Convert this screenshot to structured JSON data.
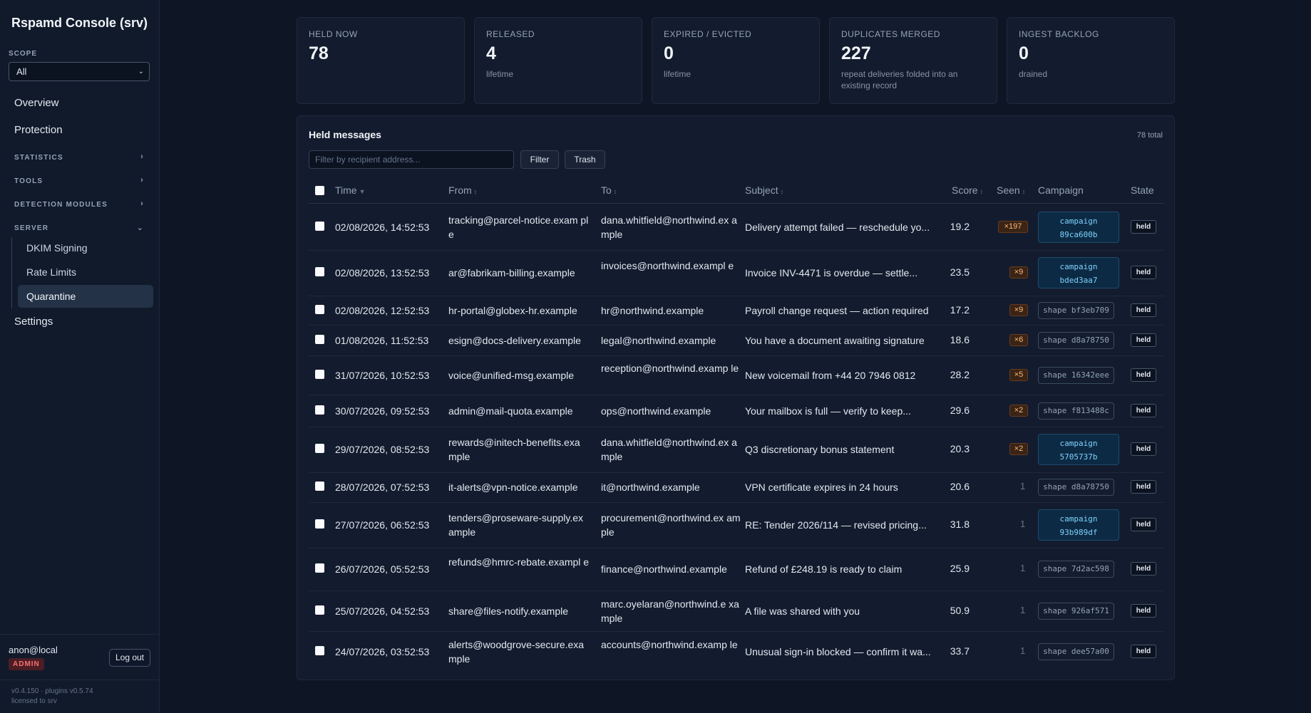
{
  "app": {
    "title": "Rspamd Console (srv)",
    "scope_label": "SCOPE",
    "scope_value": "All"
  },
  "sidebar": {
    "overview": "Overview",
    "protection": "Protection",
    "statistics": "STATISTICS",
    "tools": "TOOLS",
    "detection_modules": "DETECTION MODULES",
    "server": "SERVER",
    "dkim_signing": "DKIM Signing",
    "rate_limits": "Rate Limits",
    "quarantine": "Quarantine",
    "settings": "Settings",
    "user": "anon@local",
    "role": "ADMIN",
    "logout": "Log out",
    "version_line1": "v0.4.150 · plugins v0.5.74",
    "version_line2": "licensed to srv"
  },
  "stats": [
    {
      "label": "HELD NOW",
      "value": "78",
      "sub": ""
    },
    {
      "label": "RELEASED",
      "value": "4",
      "sub": "lifetime"
    },
    {
      "label": "EXPIRED / EVICTED",
      "value": "0",
      "sub": "lifetime"
    },
    {
      "label": "DUPLICATES MERGED",
      "value": "227",
      "sub": "repeat deliveries folded into an existing record"
    },
    {
      "label": "INGEST BACKLOG",
      "value": "0",
      "sub": "drained"
    }
  ],
  "panel": {
    "title": "Held messages",
    "total": "78 total",
    "filter_placeholder": "Filter by recipient address...",
    "filter_button": "Filter",
    "trash_button": "Trash"
  },
  "columns": {
    "time": "Time",
    "from": "From",
    "to": "To",
    "subject": "Subject",
    "score": "Score",
    "seen": "Seen",
    "campaign": "Campaign",
    "state": "State",
    "time_sort": "▼",
    "sort": "↕"
  },
  "rows": [
    {
      "time": "02/08/2026, 14:52:53",
      "from": "tracking@parcel-notice.exam ple",
      "to": "dana.whitfield@northwind.ex ample",
      "subject": "Delivery attempt failed — reschedule yo...",
      "score": "19.2",
      "seen": "×197",
      "campaign_kind": "campaign",
      "campaign_l1": "campaign",
      "campaign_l2": "89ca600b",
      "state": "held"
    },
    {
      "time": "02/08/2026, 13:52:53",
      "from": "ar@fabrikam-billing.example",
      "to": "invoices@northwind.exampl e",
      "subject": "Invoice INV-4471 is overdue — settle...",
      "score": "23.5",
      "seen": "×9",
      "campaign_kind": "campaign",
      "campaign_l1": "campaign",
      "campaign_l2": "bded3aa7",
      "state": "held"
    },
    {
      "time": "02/08/2026, 12:52:53",
      "from": "hr-portal@globex-hr.example",
      "to": "hr@northwind.example",
      "subject": "Payroll change request — action required",
      "score": "17.2",
      "seen": "×9",
      "campaign_kind": "shape",
      "campaign_l1": "shape bf3eb709",
      "campaign_l2": "",
      "state": "held"
    },
    {
      "time": "01/08/2026, 11:52:53",
      "from": "esign@docs-delivery.example",
      "to": "legal@northwind.example",
      "subject": "You have a document awaiting signature",
      "score": "18.6",
      "seen": "×6",
      "campaign_kind": "shape",
      "campaign_l1": "shape d8a78750",
      "campaign_l2": "",
      "state": "held"
    },
    {
      "time": "31/07/2026, 10:52:53",
      "from": "voice@unified-msg.example",
      "to": "reception@northwind.examp le",
      "subject": "New voicemail from +44 20 7946 0812",
      "score": "28.2",
      "seen": "×5",
      "campaign_kind": "shape",
      "campaign_l1": "shape 16342eee",
      "campaign_l2": "",
      "state": "held"
    },
    {
      "time": "30/07/2026, 09:52:53",
      "from": "admin@mail-quota.example",
      "to": "ops@northwind.example",
      "subject": "Your mailbox is full — verify to keep...",
      "score": "29.6",
      "seen": "×2",
      "campaign_kind": "shape",
      "campaign_l1": "shape f813488c",
      "campaign_l2": "",
      "state": "held"
    },
    {
      "time": "29/07/2026, 08:52:53",
      "from": "rewards@initech-benefits.exa mple",
      "to": "dana.whitfield@northwind.ex ample",
      "subject": "Q3 discretionary bonus statement",
      "score": "20.3",
      "seen": "×2",
      "campaign_kind": "campaign",
      "campaign_l1": "campaign",
      "campaign_l2": "5705737b",
      "state": "held"
    },
    {
      "time": "28/07/2026, 07:52:53",
      "from": "it-alerts@vpn-notice.example",
      "to": "it@northwind.example",
      "subject": "VPN certificate expires in 24 hours",
      "score": "20.6",
      "seen": "1",
      "campaign_kind": "shape",
      "campaign_l1": "shape d8a78750",
      "campaign_l2": "",
      "state": "held"
    },
    {
      "time": "27/07/2026, 06:52:53",
      "from": "tenders@proseware-supply.ex ample",
      "to": "procurement@northwind.ex ample",
      "subject": "RE: Tender 2026/114 — revised pricing...",
      "score": "31.8",
      "seen": "1",
      "campaign_kind": "campaign",
      "campaign_l1": "campaign",
      "campaign_l2": "93b989df",
      "state": "held"
    },
    {
      "time": "26/07/2026, 05:52:53",
      "from": "refunds@hmrc-rebate.exampl e",
      "to": "finance@northwind.example",
      "subject": "Refund of £248.19 is ready to claim",
      "score": "25.9",
      "seen": "1",
      "campaign_kind": "shape",
      "campaign_l1": "shape 7d2ac598",
      "campaign_l2": "",
      "state": "held"
    },
    {
      "time": "25/07/2026, 04:52:53",
      "from": "share@files-notify.example",
      "to": "marc.oyelaran@northwind.e xample",
      "subject": "A file was shared with you",
      "score": "50.9",
      "seen": "1",
      "campaign_kind": "shape",
      "campaign_l1": "shape 926af571",
      "campaign_l2": "",
      "state": "held"
    },
    {
      "time": "24/07/2026, 03:52:53",
      "from": "alerts@woodgrove-secure.exa mple",
      "to": "accounts@northwind.examp le",
      "subject": "Unusual sign-in blocked — confirm it wa...",
      "score": "33.7",
      "seen": "1",
      "campaign_kind": "shape",
      "campaign_l1": "shape dee57a00",
      "campaign_l2": "",
      "state": "held"
    }
  ],
  "icons": {
    "chevron_right": "›",
    "chevron_down": "⌄"
  },
  "colors": {
    "background": "#0e1525",
    "sidebar": "#111a2b",
    "panel": "#131c2e",
    "seen_badge": "#fdba74",
    "campaign": "#7dd3fc",
    "admin_badge": "#f87171"
  }
}
